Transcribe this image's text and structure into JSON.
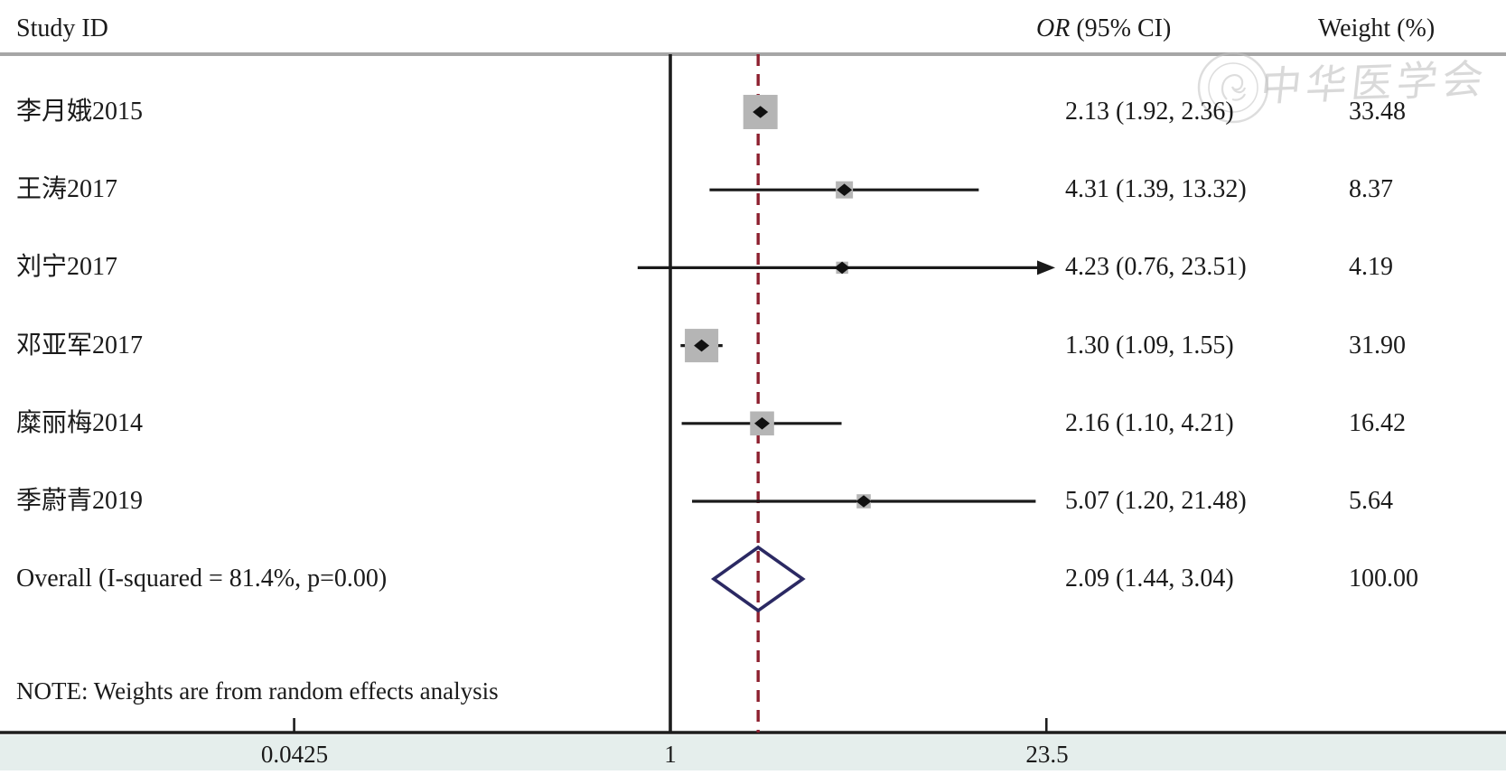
{
  "header": {
    "study_id": "Study ID",
    "or_abbrev": "OR",
    "or_rest": " (95% CI)",
    "weight": "Weight (%)"
  },
  "watermark": {
    "seal": "chinese-medical-association-seal",
    "text": "中华医学会"
  },
  "colors": {
    "text": "#1a1a1a",
    "header_rule": "#a6a6a6",
    "axis_line": "#1d1d1d",
    "ci_line": "#1a1a1a",
    "weight_box": "#b5b5b5",
    "point_marker": "#111111",
    "null_line": "#1d1d1d",
    "pooled_dashed_line": "#8e2130",
    "diamond_outline": "#2b2963",
    "axis_band": "#e5eeec",
    "watermark_gray": "#c3c3c3"
  },
  "chart_data": {
    "type": "forest",
    "effect_measure": "OR",
    "x_axis": {
      "scale": "log",
      "ticks": [
        0.0425,
        1,
        23.5
      ],
      "tick_labels": [
        "0.0425",
        "1",
        "23.5"
      ],
      "xlim": [
        0.0425,
        23.5
      ]
    },
    "null_line_at": 1,
    "pooled_line_at": 2.09,
    "studies": [
      {
        "label": "李月娥2015",
        "or": 2.13,
        "ci_low": 1.92,
        "ci_high": 2.36,
        "weight": 33.48,
        "or_text": "2.13 (1.92, 2.36)",
        "weight_text": "33.48",
        "clipped_high": false
      },
      {
        "label": "王涛2017",
        "or": 4.31,
        "ci_low": 1.39,
        "ci_high": 13.32,
        "weight": 8.37,
        "or_text": "4.31 (1.39, 13.32)",
        "weight_text": "8.37",
        "clipped_high": false
      },
      {
        "label": "刘宁2017",
        "or": 4.23,
        "ci_low": 0.76,
        "ci_high": 23.51,
        "weight": 4.19,
        "or_text": "4.23 (0.76, 23.51)",
        "weight_text": "4.19",
        "clipped_high": true
      },
      {
        "label": "邓亚军2017",
        "or": 1.3,
        "ci_low": 1.09,
        "ci_high": 1.55,
        "weight": 31.9,
        "or_text": "1.30 (1.09, 1.55)",
        "weight_text": "31.90",
        "clipped_high": false
      },
      {
        "label": "糜丽梅2014",
        "or": 2.16,
        "ci_low": 1.1,
        "ci_high": 4.21,
        "weight": 16.42,
        "or_text": "2.16 (1.10, 4.21)",
        "weight_text": "16.42",
        "clipped_high": false
      },
      {
        "label": "季蔚青2019",
        "or": 5.07,
        "ci_low": 1.2,
        "ci_high": 21.48,
        "weight": 5.64,
        "or_text": "5.07 (1.20, 21.48)",
        "weight_text": "5.64",
        "clipped_high": false
      }
    ],
    "overall": {
      "label": "Overall (I-squared = 81.4%, p=0.00)",
      "or": 2.09,
      "ci_low": 1.44,
      "ci_high": 3.04,
      "or_text": "2.09 (1.44, 3.04)",
      "weight_text": "100.00"
    },
    "note": "NOTE: Weights are from random effects analysis",
    "legend": "none",
    "grid": false
  }
}
